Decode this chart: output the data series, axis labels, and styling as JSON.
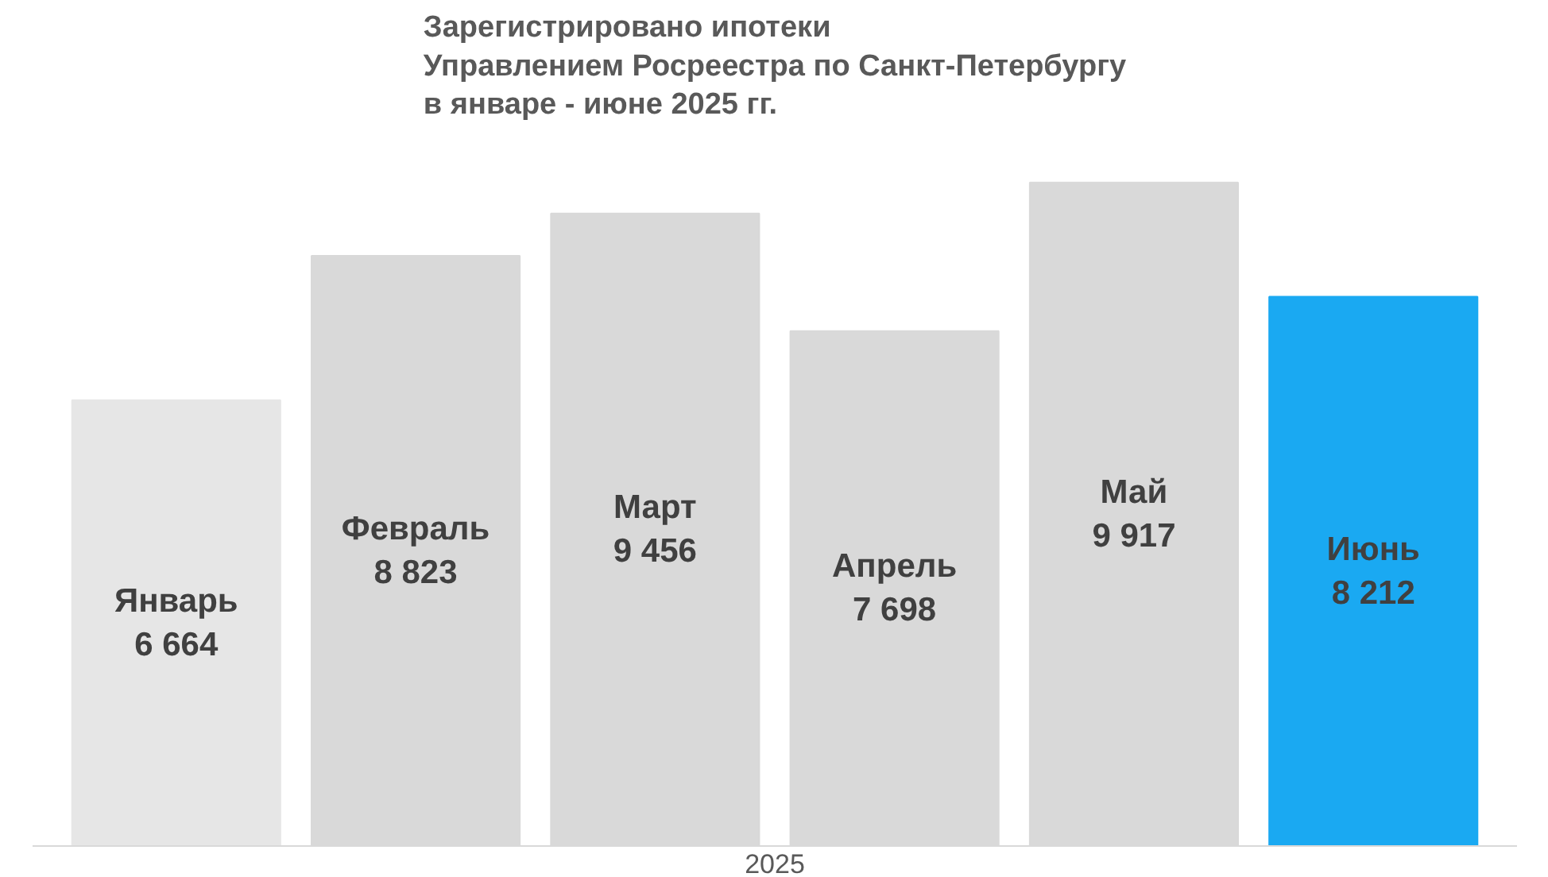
{
  "chart_data": {
    "type": "bar",
    "title": "Зарегистрировано ипотеки\nУправлением Росреестра по Санкт-Петербургу\nв январе - июне 2025 гг.",
    "xlabel": "2025",
    "categories": [
      "Январь",
      "Февраль",
      "Март",
      "Апрель",
      "Май",
      "Июнь"
    ],
    "values": [
      6664,
      8823,
      9456,
      7698,
      9917,
      8212
    ],
    "value_labels": [
      "6 664",
      "8 823",
      "9 456",
      "7 698",
      "9 917",
      "8 212"
    ],
    "colors": [
      "#e6e6e6",
      "#d9d9d9",
      "#d9d9d9",
      "#d9d9d9",
      "#d9d9d9",
      "#1aa9f2"
    ]
  }
}
